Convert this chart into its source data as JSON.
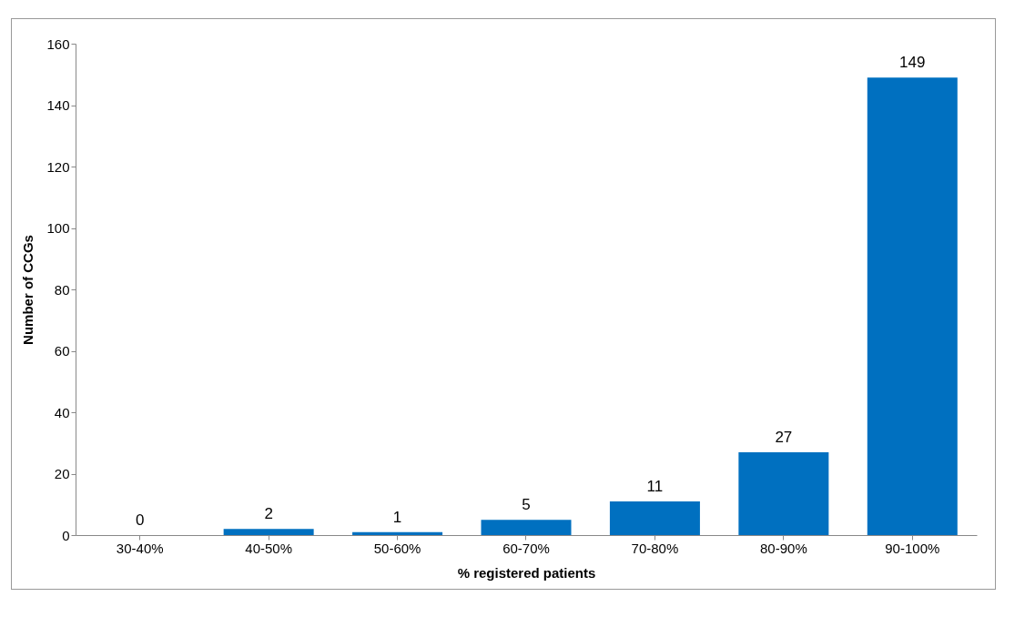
{
  "chart_data": {
    "type": "bar",
    "xlabel": "% registered patients",
    "ylabel": "Number of CCGs",
    "categories": [
      "30-40%",
      "40-50%",
      "50-60%",
      "60-70%",
      "70-80%",
      "80-90%",
      "90-100%"
    ],
    "values": [
      0,
      2,
      1,
      5,
      11,
      27,
      149
    ],
    "color": "#0070c0",
    "ylim": [
      0,
      160
    ],
    "yticks": [
      0,
      20,
      40,
      60,
      80,
      100,
      120,
      140,
      160
    ],
    "grid": false,
    "data_labels": true
  }
}
